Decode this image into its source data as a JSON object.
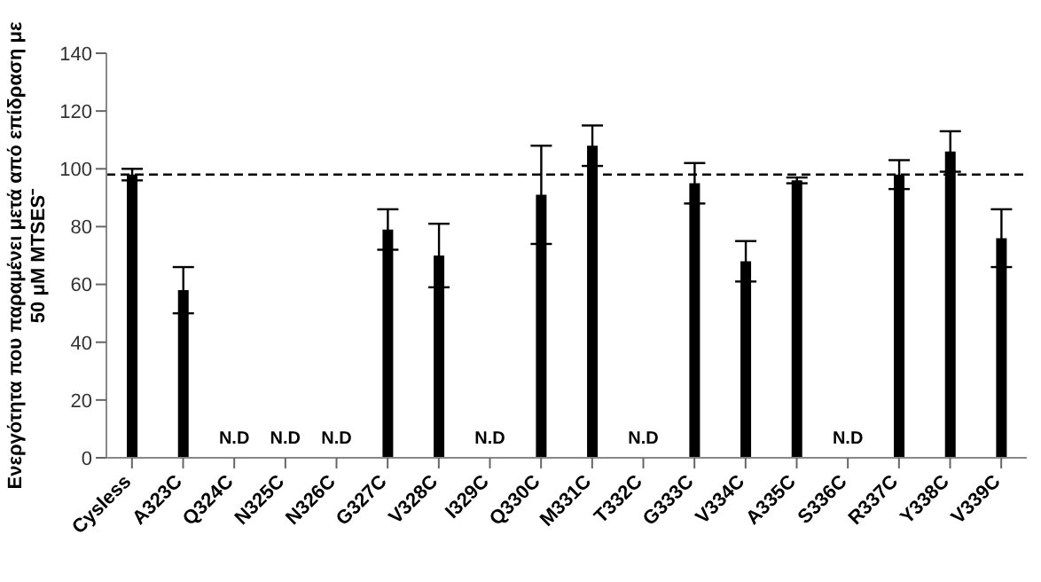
{
  "chart_data": {
    "type": "bar",
    "ylabel": "Ενεργότητα που παραμένει μετά από επίδραση με\n50 μM MTSES⁻",
    "categories": [
      "Cysless",
      "A323C",
      "Q324C",
      "N325C",
      "N326C",
      "G327C",
      "V328C",
      "I329C",
      "Q330C",
      "M331C",
      "T332C",
      "G333C",
      "V334C",
      "A335C",
      "S336C",
      "R337C",
      "Y338C",
      "V339C"
    ],
    "values": [
      98,
      58,
      null,
      null,
      null,
      79,
      70,
      null,
      91,
      108,
      null,
      95,
      68,
      96,
      null,
      98,
      106,
      76
    ],
    "errors": [
      2,
      8,
      null,
      null,
      null,
      7,
      11,
      null,
      17,
      7,
      null,
      7,
      7,
      1,
      null,
      5,
      7,
      10
    ],
    "value_labels": [
      null,
      null,
      "N.D",
      "N.D",
      "N.D",
      null,
      null,
      "N.D",
      null,
      null,
      "N.D",
      null,
      null,
      null,
      "N.D",
      null,
      null,
      null
    ],
    "color": "#000000",
    "ylim": [
      0,
      140
    ],
    "yticks": [
      0,
      20,
      40,
      60,
      80,
      100,
      120,
      140
    ],
    "grid": false,
    "ref_lines": [
      {
        "axis": "y",
        "value": 98,
        "color": "#000000",
        "line_style": "dashed"
      }
    ]
  }
}
